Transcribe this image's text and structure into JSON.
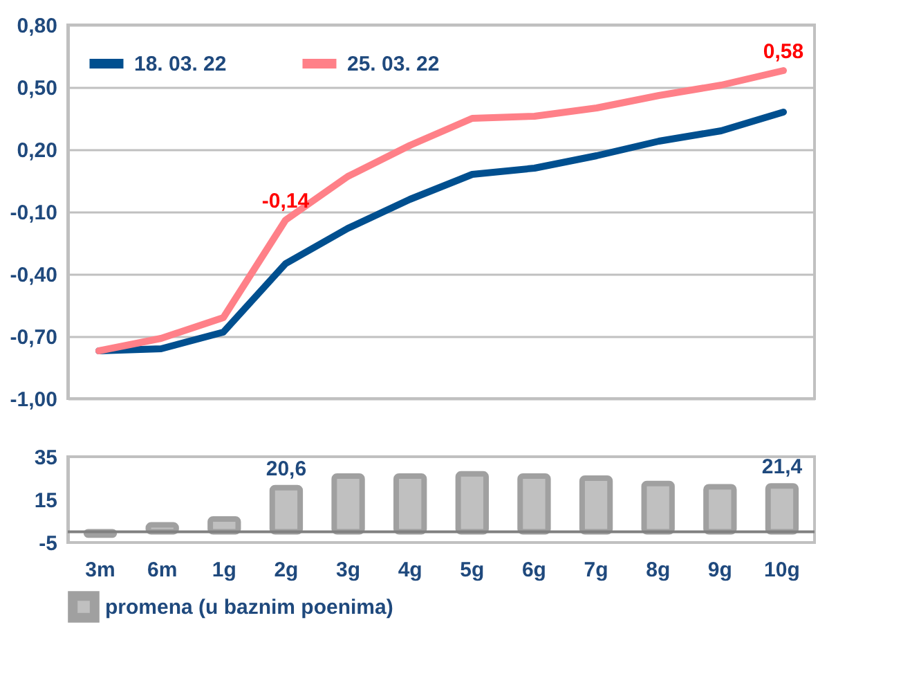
{
  "chart_data": [
    {
      "type": "line",
      "categories": [
        null,
        null,
        null,
        null,
        null,
        null,
        null,
        null,
        null,
        null,
        null,
        null
      ],
      "series": [
        {
          "name": "18. 03. 22",
          "color": "#004f8f",
          "values": [
            -0.77,
            -0.76,
            -0.68,
            -0.35,
            -0.18,
            -0.04,
            0.08,
            0.11,
            0.17,
            0.24,
            0.29,
            0.38
          ]
        },
        {
          "name": "25. 03. 22",
          "color": "#ff8088",
          "values": [
            -0.77,
            -0.71,
            -0.61,
            -0.14,
            0.07,
            0.22,
            0.35,
            0.36,
            0.4,
            0.46,
            0.51,
            0.58
          ],
          "value_labels": [
            null,
            null,
            null,
            "-0,14",
            null,
            null,
            null,
            null,
            null,
            null,
            null,
            "0,58"
          ]
        }
      ],
      "ylim": [
        -1.0,
        0.8
      ],
      "yticks": [
        {
          "value": 0.8,
          "label": "0,80"
        },
        {
          "value": 0.5,
          "label": "0,50"
        },
        {
          "value": 0.2,
          "label": "0,20"
        },
        {
          "value": -0.1,
          "label": "-0,10"
        },
        {
          "value": -0.4,
          "label": "-0,40"
        },
        {
          "value": -0.7,
          "label": "-0,70"
        },
        {
          "value": -1.0,
          "label": "-1,00"
        }
      ],
      "grid": "y",
      "legend": "top left"
    },
    {
      "type": "bar",
      "categories": [
        "3m",
        "6m",
        "1g",
        "2g",
        "3g",
        "4g",
        "5g",
        "6g",
        "7g",
        "8g",
        "9g",
        "10g"
      ],
      "series": [
        {
          "name": "promena (u baznim poenima)",
          "color": "#c0c0c0",
          "values": [
            -1.5,
            3.2,
            6,
            20.6,
            26,
            26,
            27,
            26,
            25,
            22.5,
            21,
            21.4
          ],
          "value_labels": [
            null,
            null,
            null,
            "20,6",
            null,
            null,
            null,
            null,
            null,
            null,
            null,
            "21,4"
          ]
        }
      ],
      "ylim": [
        -5,
        35
      ],
      "yticks": [
        35,
        15,
        -5
      ],
      "grid": false,
      "legend": "bottom"
    }
  ]
}
